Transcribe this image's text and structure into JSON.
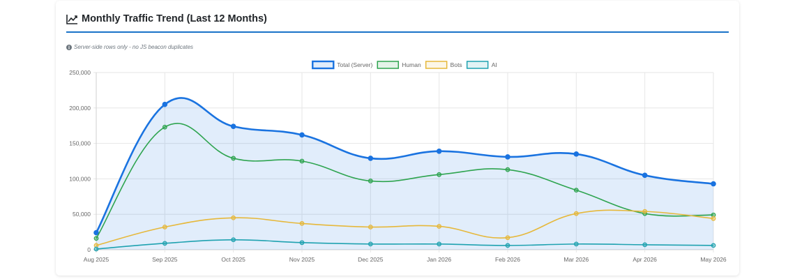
{
  "header": {
    "title": "Monthly Traffic Trend (Last 12 Months)",
    "icon": "line-chart-icon"
  },
  "note": {
    "text": "Server-side rows only - no JS beacon duplicates",
    "icon": "info-circle-icon"
  },
  "chart_data": {
    "type": "line",
    "categories": [
      "Aug 2025",
      "Sep 2025",
      "Oct 2025",
      "Nov 2025",
      "Dec 2025",
      "Jan 2026",
      "Feb 2026",
      "Mar 2026",
      "Apr 2026",
      "May 2026"
    ],
    "ylim": [
      0,
      250000
    ],
    "y_ticks": [
      "0",
      "50,000",
      "100,000",
      "150,000",
      "200,000",
      "250,000"
    ],
    "grid": true,
    "legend_position": "top",
    "series": [
      {
        "name": "Total (Server)",
        "color": "#1a73e0",
        "fill": true,
        "values": [
          24000,
          205000,
          174000,
          162000,
          129000,
          139000,
          131000,
          135000,
          105000,
          93000
        ]
      },
      {
        "name": "Human",
        "color": "#2ea44f",
        "fill": false,
        "values": [
          16000,
          173000,
          129000,
          125000,
          97000,
          106000,
          113000,
          84000,
          51000,
          49000
        ]
      },
      {
        "name": "Bots",
        "color": "#e6b83a",
        "fill": false,
        "values": [
          6000,
          32000,
          45000,
          37000,
          32000,
          33000,
          17000,
          51000,
          54000,
          44000
        ]
      },
      {
        "name": "AI",
        "color": "#1fa2b0",
        "fill": false,
        "values": [
          1000,
          9000,
          14000,
          10000,
          8000,
          8000,
          6000,
          8000,
          7000,
          6000
        ]
      }
    ]
  }
}
